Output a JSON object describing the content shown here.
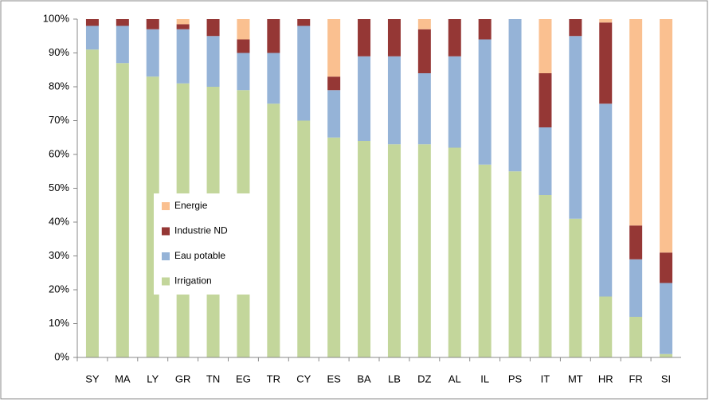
{
  "chart_data": {
    "type": "stacked_bar_percent",
    "categories": [
      "SY",
      "MA",
      "LY",
      "GR",
      "TN",
      "EG",
      "TR",
      "CY",
      "ES",
      "BA",
      "LB",
      "DZ",
      "AL",
      "IL",
      "PS",
      "IT",
      "MT",
      "HR",
      "FR",
      "SI"
    ],
    "series": [
      {
        "name": "Irrigation",
        "color": "#c3d69b",
        "values": [
          91,
          87,
          83,
          81,
          80,
          79,
          75,
          70,
          65,
          64,
          63,
          63,
          62,
          57,
          55,
          48,
          41,
          18,
          12,
          1
        ]
      },
      {
        "name": "Eau potable",
        "color": "#95b3d7",
        "values": [
          7,
          11,
          14,
          16,
          15,
          11,
          15,
          28,
          14,
          25,
          26,
          21,
          27,
          37,
          45,
          20,
          54,
          57,
          17,
          21
        ]
      },
      {
        "name": "Industrie ND",
        "color": "#953735",
        "values": [
          2,
          2,
          3,
          1.5,
          5,
          4,
          10,
          2,
          4,
          11,
          11,
          13,
          11,
          6,
          0,
          16,
          5,
          24,
          10,
          9
        ]
      },
      {
        "name": "Energie",
        "color": "#fac090",
        "values": [
          0,
          0,
          0,
          1.5,
          0,
          6,
          0,
          0,
          17,
          0,
          0,
          3,
          0,
          0,
          0,
          16,
          0,
          1,
          61,
          69
        ]
      }
    ],
    "ylim": [
      0,
      100
    ],
    "yticks": [
      {
        "value": 0,
        "label": "0%"
      },
      {
        "value": 10,
        "label": "10%"
      },
      {
        "value": 20,
        "label": "20%"
      },
      {
        "value": 30,
        "label": "30%"
      },
      {
        "value": 40,
        "label": "40%"
      },
      {
        "value": 50,
        "label": "50%"
      },
      {
        "value": 60,
        "label": "60%"
      },
      {
        "value": 70,
        "label": "70%"
      },
      {
        "value": 80,
        "label": "80%"
      },
      {
        "value": 90,
        "label": "90%"
      },
      {
        "value": 100,
        "label": "100%"
      }
    ],
    "grid": false,
    "legend": "left"
  }
}
